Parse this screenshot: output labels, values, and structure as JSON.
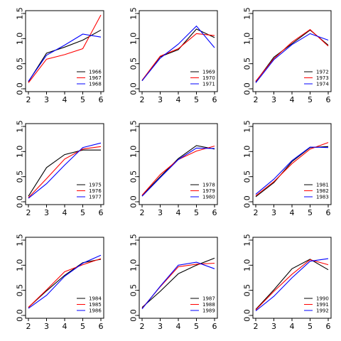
{
  "colors": [
    "#000000",
    "#ff0000",
    "#0000ff"
  ],
  "chart_data": [
    {
      "type": "line",
      "x": [
        2,
        3,
        4,
        5,
        6
      ],
      "xlim": [
        2,
        6
      ],
      "ylim": [
        0,
        1.5
      ],
      "xticks": [
        2,
        3,
        4,
        5,
        6
      ],
      "yticks": [
        "0.0",
        "0.5",
        "1.0",
        "1.5"
      ],
      "legend_position": "bottom-right",
      "series": [
        {
          "name": "1966",
          "values": [
            0.14,
            0.71,
            0.83,
            0.97,
            1.17
          ]
        },
        {
          "name": "1967",
          "values": [
            0.12,
            0.59,
            0.68,
            0.8,
            1.47
          ]
        },
        {
          "name": "1968",
          "values": [
            0.15,
            0.67,
            0.87,
            1.09,
            1.03
          ]
        }
      ]
    },
    {
      "type": "line",
      "x": [
        2,
        3,
        4,
        5,
        6
      ],
      "xlim": [
        2,
        6
      ],
      "ylim": [
        0,
        1.5
      ],
      "xticks": [
        2,
        3,
        4,
        5,
        6
      ],
      "yticks": [
        "0.0",
        "0.5",
        "1.0",
        "1.5"
      ],
      "legend_position": "bottom-right",
      "series": [
        {
          "name": "1969",
          "values": [
            0.16,
            0.64,
            0.78,
            1.19,
            1.02
          ]
        },
        {
          "name": "1970",
          "values": [
            0.17,
            0.65,
            0.8,
            1.1,
            1.06
          ]
        },
        {
          "name": "1971",
          "values": [
            0.16,
            0.61,
            0.89,
            1.25,
            0.82
          ]
        }
      ]
    },
    {
      "type": "line",
      "x": [
        2,
        3,
        4,
        5,
        6
      ],
      "xlim": [
        2,
        6
      ],
      "ylim": [
        0,
        1.5
      ],
      "xticks": [
        2,
        3,
        4,
        5,
        6
      ],
      "yticks": [
        "0.0",
        "0.5",
        "1.0",
        "1.5"
      ],
      "legend_position": "bottom-right",
      "series": [
        {
          "name": "1972",
          "values": [
            0.14,
            0.63,
            0.9,
            1.17,
            0.87
          ]
        },
        {
          "name": "1973",
          "values": [
            0.15,
            0.6,
            0.93,
            1.18,
            0.85
          ]
        },
        {
          "name": "1974",
          "values": [
            0.12,
            0.58,
            0.88,
            1.1,
            0.97
          ]
        }
      ]
    },
    {
      "type": "line",
      "x": [
        2,
        3,
        4,
        5,
        6
      ],
      "xlim": [
        2,
        6
      ],
      "ylim": [
        0,
        1.5
      ],
      "xticks": [
        2,
        3,
        4,
        5,
        6
      ],
      "yticks": [
        "0.0",
        "0.5",
        "1.0",
        "1.5"
      ],
      "legend_position": "bottom-right",
      "series": [
        {
          "name": "1975",
          "values": [
            0.11,
            0.68,
            0.94,
            1.03,
            1.03
          ]
        },
        {
          "name": "1976",
          "values": [
            0.08,
            0.46,
            0.85,
            1.05,
            1.1
          ]
        },
        {
          "name": "1977",
          "values": [
            0.07,
            0.36,
            0.73,
            1.08,
            1.17
          ]
        }
      ]
    },
    {
      "type": "line",
      "x": [
        2,
        3,
        4,
        5,
        6
      ],
      "xlim": [
        2,
        6
      ],
      "ylim": [
        0,
        1.5
      ],
      "xticks": [
        2,
        3,
        4,
        5,
        6
      ],
      "yticks": [
        "0.0",
        "0.5",
        "1.0",
        "1.5"
      ],
      "legend_position": "bottom-right",
      "series": [
        {
          "name": "1978",
          "values": [
            0.12,
            0.5,
            0.86,
            1.12,
            1.05
          ]
        },
        {
          "name": "1979",
          "values": [
            0.13,
            0.54,
            0.84,
            1.01,
            1.11
          ]
        },
        {
          "name": "1980",
          "values": [
            0.11,
            0.48,
            0.84,
            1.07,
            1.06
          ]
        }
      ]
    },
    {
      "type": "line",
      "x": [
        2,
        3,
        4,
        5,
        6
      ],
      "xlim": [
        2,
        6
      ],
      "ylim": [
        0,
        1.5
      ],
      "xticks": [
        2,
        3,
        4,
        5,
        6
      ],
      "yticks": [
        "0.0",
        "0.5",
        "1.0",
        "1.5"
      ],
      "legend_position": "bottom-right",
      "series": [
        {
          "name": "1981",
          "values": [
            0.1,
            0.38,
            0.8,
            1.08,
            1.1
          ]
        },
        {
          "name": "1982",
          "values": [
            0.12,
            0.4,
            0.76,
            1.05,
            1.18
          ]
        },
        {
          "name": "1983",
          "values": [
            0.15,
            0.45,
            0.82,
            1.09,
            1.08
          ]
        }
      ]
    },
    {
      "type": "line",
      "x": [
        2,
        3,
        4,
        5,
        6
      ],
      "xlim": [
        2,
        6
      ],
      "ylim": [
        0,
        1.5
      ],
      "xticks": [
        2,
        3,
        4,
        5,
        6
      ],
      "yticks": [
        "0.0",
        "0.5",
        "1.0",
        "1.5"
      ],
      "legend_position": "bottom-right",
      "series": [
        {
          "name": "1984",
          "values": [
            0.16,
            0.49,
            0.8,
            1.05,
            1.12
          ]
        },
        {
          "name": "1985",
          "values": [
            0.16,
            0.51,
            0.87,
            1.01,
            1.13
          ]
        },
        {
          "name": "1986",
          "values": [
            0.14,
            0.4,
            0.78,
            1.04,
            1.2
          ]
        }
      ]
    },
    {
      "type": "line",
      "x": [
        2,
        3,
        4,
        5,
        6
      ],
      "xlim": [
        2,
        6
      ],
      "ylim": [
        0,
        1.5
      ],
      "xticks": [
        2,
        3,
        4,
        5,
        6
      ],
      "yticks": [
        "0.0",
        "0.5",
        "1.0",
        "1.5"
      ],
      "legend_position": "bottom-right",
      "series": [
        {
          "name": "1987",
          "values": [
            0.16,
            0.48,
            0.83,
            1.0,
            1.14
          ]
        },
        {
          "name": "1988",
          "values": [
            0.14,
            0.57,
            0.97,
            1.02,
            1.04
          ]
        },
        {
          "name": "1989",
          "values": [
            0.13,
            0.58,
            1.0,
            1.06,
            0.93
          ]
        }
      ]
    },
    {
      "type": "line",
      "x": [
        2,
        3,
        4,
        5,
        6
      ],
      "xlim": [
        2,
        6
      ],
      "ylim": [
        0,
        1.5
      ],
      "xticks": [
        2,
        3,
        4,
        5,
        6
      ],
      "yticks": [
        "0.0",
        "0.5",
        "1.0",
        "1.5"
      ],
      "legend_position": "bottom-right",
      "series": [
        {
          "name": "1990",
          "values": [
            0.12,
            0.51,
            0.93,
            1.12,
            0.91
          ]
        },
        {
          "name": "1991",
          "values": [
            0.11,
            0.48,
            0.82,
            1.11,
            1.01
          ]
        },
        {
          "name": "1992",
          "values": [
            0.09,
            0.38,
            0.75,
            1.08,
            1.13
          ]
        }
      ]
    }
  ]
}
